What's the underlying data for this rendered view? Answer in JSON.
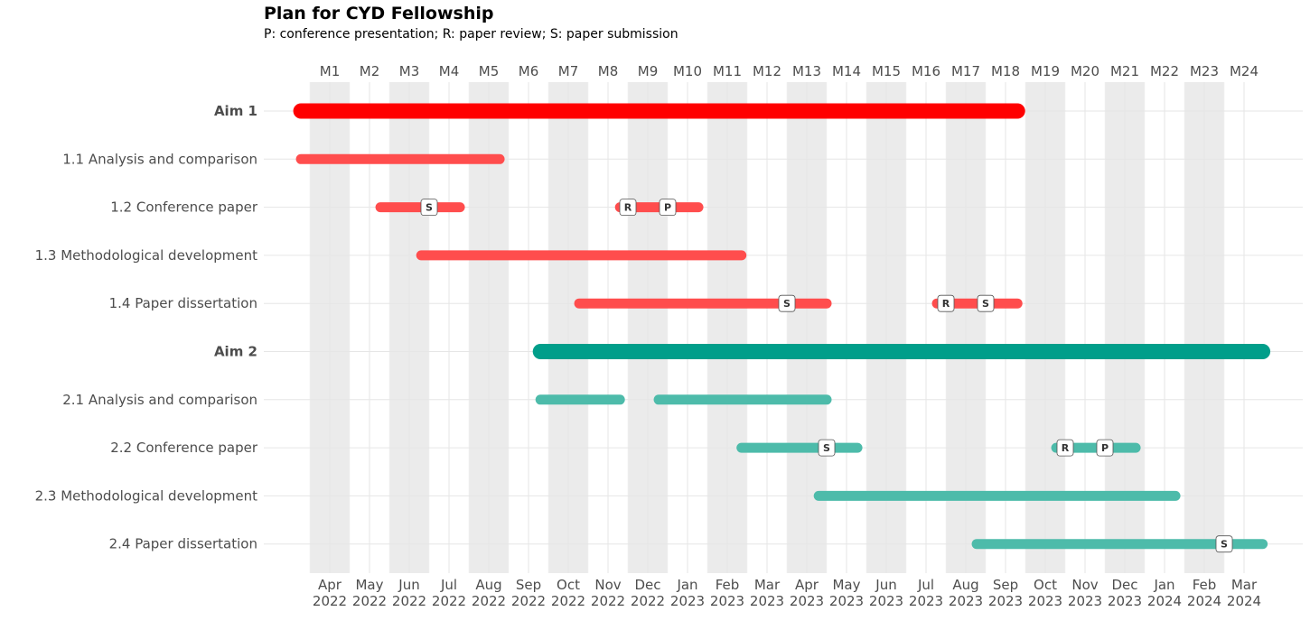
{
  "chart_data": {
    "type": "gantt",
    "title": "Plan for CYD Fellowship",
    "subtitle": "P: conference presentation; R: paper review; S: paper submission",
    "months": [
      "M1",
      "M2",
      "M3",
      "M4",
      "M5",
      "M6",
      "M7",
      "M8",
      "M9",
      "M10",
      "M11",
      "M12",
      "M13",
      "M14",
      "M15",
      "M16",
      "M17",
      "M18",
      "M19",
      "M20",
      "M21",
      "M22",
      "M23",
      "M24"
    ],
    "x_ticks": [
      {
        "month": "Apr",
        "year": "2022"
      },
      {
        "month": "May",
        "year": "2022"
      },
      {
        "month": "Jun",
        "year": "2022"
      },
      {
        "month": "Jul",
        "year": "2022"
      },
      {
        "month": "Aug",
        "year": "2022"
      },
      {
        "month": "Sep",
        "year": "2022"
      },
      {
        "month": "Oct",
        "year": "2022"
      },
      {
        "month": "Nov",
        "year": "2022"
      },
      {
        "month": "Dec",
        "year": "2022"
      },
      {
        "month": "Jan",
        "year": "2023"
      },
      {
        "month": "Feb",
        "year": "2023"
      },
      {
        "month": "Mar",
        "year": "2023"
      },
      {
        "month": "Apr",
        "year": "2023"
      },
      {
        "month": "May",
        "year": "2023"
      },
      {
        "month": "Jun",
        "year": "2023"
      },
      {
        "month": "Jul",
        "year": "2023"
      },
      {
        "month": "Aug",
        "year": "2023"
      },
      {
        "month": "Sep",
        "year": "2023"
      },
      {
        "month": "Oct",
        "year": "2023"
      },
      {
        "month": "Nov",
        "year": "2023"
      },
      {
        "month": "Dec",
        "year": "2023"
      },
      {
        "month": "Jan",
        "year": "2024"
      },
      {
        "month": "Feb",
        "year": "2024"
      },
      {
        "month": "Mar",
        "year": "2024"
      }
    ],
    "x_start": "2022-04-01",
    "x_end": "2024-03-31",
    "shading": "alternate month columns",
    "grid": true,
    "rows": [
      {
        "label": "Aim 1",
        "aim": true,
        "color": "#ff0000",
        "bars": [
          {
            "start": "2022-03-25",
            "end": "2023-09-25"
          }
        ],
        "markers": []
      },
      {
        "label": "1.1 Analysis and comparison",
        "aim": false,
        "color": "#ff4d4d",
        "bars": [
          {
            "start": "2022-03-25",
            "end": "2022-08-25"
          }
        ],
        "markers": []
      },
      {
        "label": "1.2 Conference paper",
        "aim": false,
        "color": "#ff4d4d",
        "bars": [
          {
            "start": "2022-05-25",
            "end": "2022-07-25"
          },
          {
            "start": "2022-11-25",
            "end": "2023-01-25"
          }
        ],
        "markers": [
          {
            "text": "S",
            "date": "2022-07-01"
          },
          {
            "text": "R",
            "date": "2022-12-01"
          },
          {
            "text": "P",
            "date": "2023-01-01"
          }
        ]
      },
      {
        "label": "1.3 Methodological development",
        "aim": false,
        "color": "#ff4d4d",
        "bars": [
          {
            "start": "2022-06-25",
            "end": "2023-02-25"
          }
        ],
        "markers": []
      },
      {
        "label": "1.4 Paper dissertation",
        "aim": false,
        "color": "#ff4d4d",
        "bars": [
          {
            "start": "2022-10-25",
            "end": "2023-05-01"
          },
          {
            "start": "2023-07-25",
            "end": "2023-09-25"
          }
        ],
        "markers": [
          {
            "text": "S",
            "date": "2023-04-01"
          },
          {
            "text": "R",
            "date": "2023-08-01"
          },
          {
            "text": "S",
            "date": "2023-09-01"
          }
        ]
      },
      {
        "label": "Aim 2",
        "aim": true,
        "color": "#009e8a",
        "bars": [
          {
            "start": "2022-09-25",
            "end": "2024-03-31"
          }
        ],
        "markers": []
      },
      {
        "label": "2.1 Analysis and comparison",
        "aim": false,
        "color": "#4dbbaa",
        "bars": [
          {
            "start": "2022-09-25",
            "end": "2022-11-25"
          },
          {
            "start": "2022-12-25",
            "end": "2023-05-01"
          }
        ],
        "markers": []
      },
      {
        "label": "2.2 Conference paper",
        "aim": false,
        "color": "#4dbbaa",
        "bars": [
          {
            "start": "2023-02-25",
            "end": "2023-05-25"
          },
          {
            "start": "2023-10-25",
            "end": "2023-12-25"
          }
        ],
        "markers": [
          {
            "text": "S",
            "date": "2023-05-01"
          },
          {
            "text": "R",
            "date": "2023-11-01"
          },
          {
            "text": "P",
            "date": "2023-12-01"
          }
        ]
      },
      {
        "label": "2.3 Methodological development",
        "aim": false,
        "color": "#4dbbaa",
        "bars": [
          {
            "start": "2023-04-25",
            "end": "2024-01-25"
          }
        ],
        "markers": []
      },
      {
        "label": "2.4 Paper dissertation",
        "aim": false,
        "color": "#4dbbaa",
        "bars": [
          {
            "start": "2023-08-25",
            "end": "2024-03-31"
          }
        ],
        "markers": [
          {
            "text": "S",
            "date": "2024-03-01"
          }
        ]
      }
    ]
  }
}
